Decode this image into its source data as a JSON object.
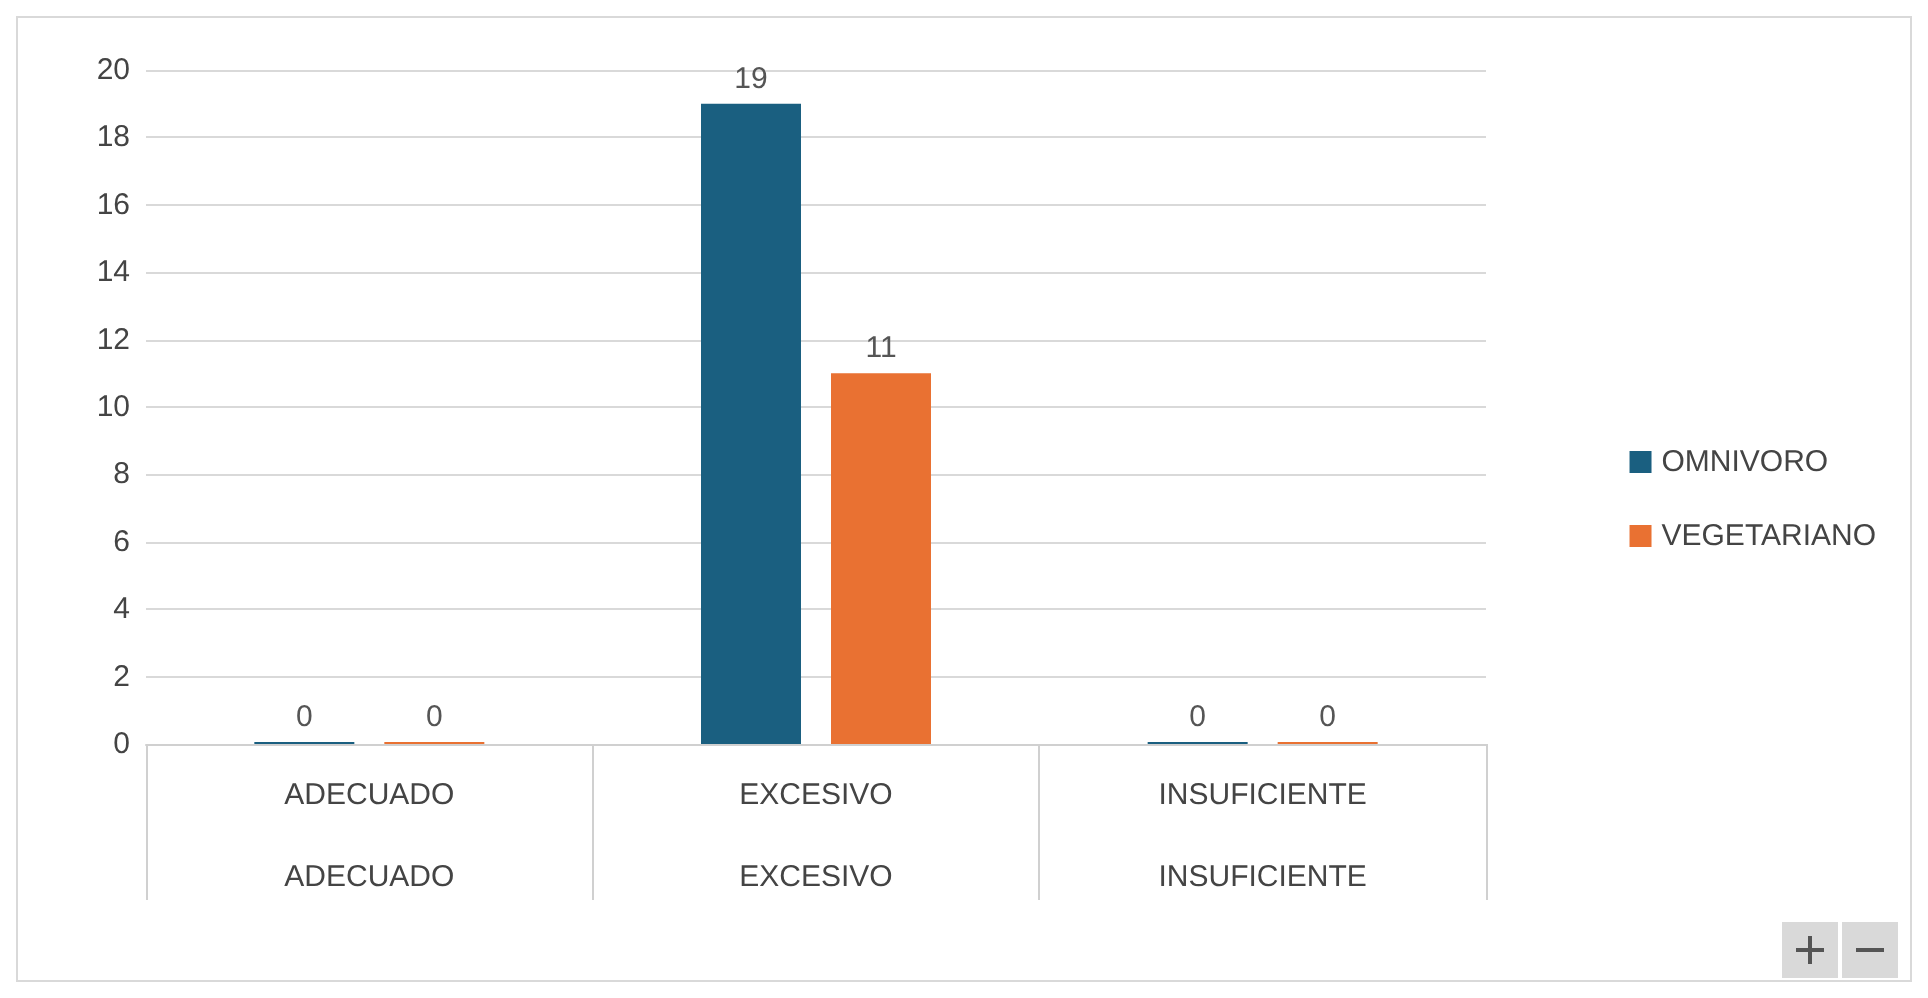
{
  "chart_data": {
    "type": "bar",
    "categories": [
      "ADECUADO",
      "EXCESIVO",
      "INSUFICIENTE"
    ],
    "series": [
      {
        "name": "OMNIVORO",
        "color": "#1a5f80",
        "values": [
          0,
          19,
          0
        ]
      },
      {
        "name": "VEGETARIANO",
        "color": "#e97132",
        "values": [
          0,
          11,
          0
        ]
      }
    ],
    "ylim": [
      0,
      20
    ],
    "yticks": [
      0,
      2,
      4,
      6,
      8,
      10,
      12,
      14,
      16,
      18,
      20
    ],
    "grid": "y",
    "legend": "right",
    "data_labels": true
  }
}
